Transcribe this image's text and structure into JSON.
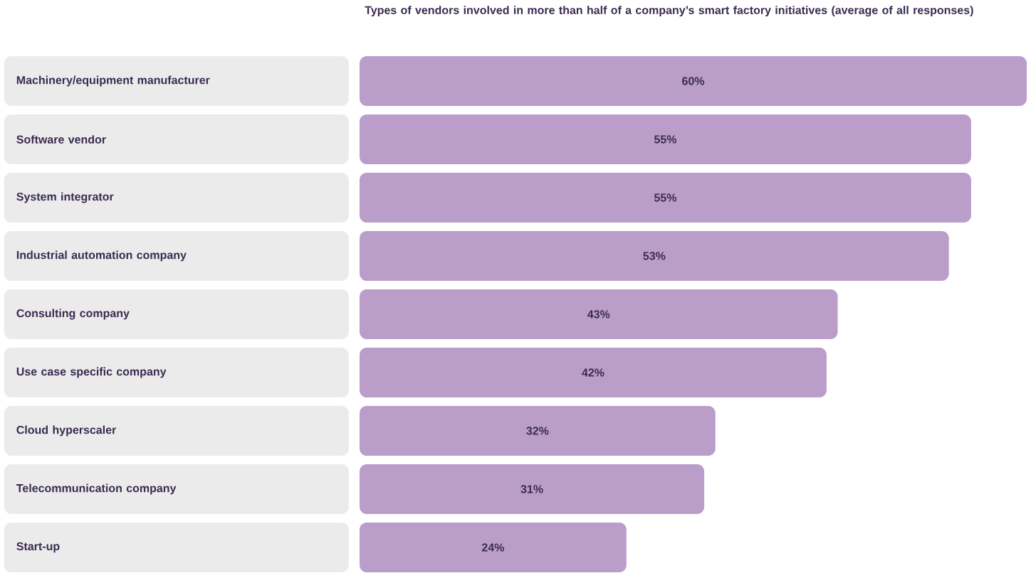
{
  "chart_data": {
    "type": "bar",
    "orientation": "horizontal",
    "title": "Types of vendors involved in more than half of a company’s smart factory initiatives (average of all responses)",
    "categories": [
      "Machinery/equipment manufacturer",
      "Software vendor",
      "System integrator",
      "Industrial automation company",
      "Consulting company",
      "Use case specific company",
      "Cloud hyperscaler",
      "Telecommunication company",
      "Start-up"
    ],
    "values": [
      60,
      55,
      55,
      53,
      43,
      42,
      32,
      31,
      24
    ],
    "value_labels": [
      "60%",
      "55%",
      "55%",
      "53%",
      "43%",
      "42%",
      "32%",
      "31%",
      "24%"
    ],
    "color": "#bb9dca"
  }
}
